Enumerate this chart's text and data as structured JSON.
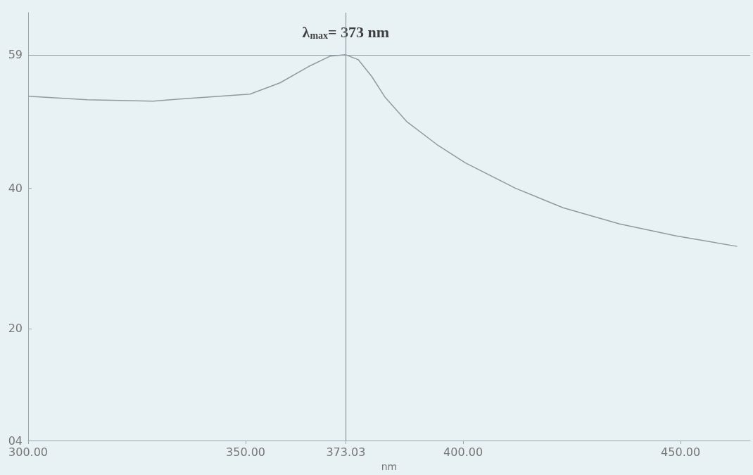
{
  "chart_data": {
    "type": "line",
    "xlabel": "nm",
    "x": [
      300,
      313.6,
      328.7,
      334.8,
      351,
      357.9,
      364.4,
      369.4,
      373.03,
      375.9,
      379,
      382,
      387,
      394,
      400.5,
      412,
      423,
      436,
      449,
      463
    ],
    "series": [
      {
        "color": "#8c9ca2",
        "values": [
          53.1,
          52.6,
          52.4,
          52.7,
          53.4,
          55,
          57.3,
          58.8,
          59,
          58.3,
          55.9,
          53,
          49.5,
          46.2,
          43.6,
          40,
          37.2,
          34.9,
          33.2,
          31.7
        ]
      }
    ],
    "xlim": [
      300,
      466
    ],
    "ylim": [
      4.04,
      65
    ],
    "xticks": [
      {
        "value": 300,
        "label": "300.00"
      },
      {
        "value": 350,
        "label": "350.00"
      },
      {
        "value": 373.03,
        "label": "373.03"
      },
      {
        "value": 400,
        "label": "400.00"
      },
      {
        "value": 450,
        "label": "450.00"
      }
    ],
    "yticks": [
      {
        "value": 4.04,
        "label": "04"
      },
      20,
      40,
      59
    ],
    "ref_lines": [
      {
        "axis": "x",
        "value": 373.03,
        "color": "#8c9ca2"
      },
      {
        "axis": "y",
        "value": 59,
        "color": "#8c9ca2"
      }
    ],
    "annotations": [
      {
        "text": "λ$_{max}$= 373 nm",
        "x": 373.03,
        "y": 59
      }
    ],
    "marker": "none",
    "line_style": "solid"
  }
}
